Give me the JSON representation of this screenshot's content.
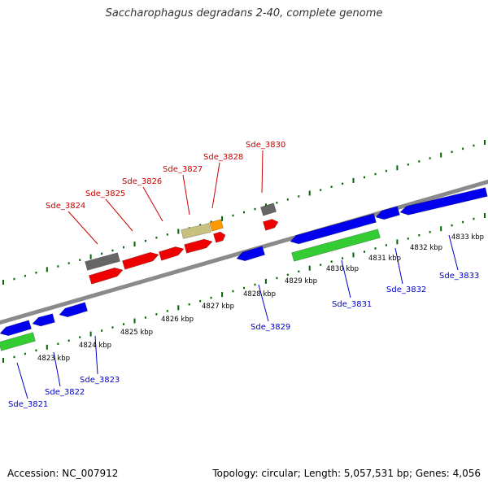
{
  "title": "Saccharophagus degradans 2-40, complete genome",
  "footer": {
    "accession": "Accession: NC_007912",
    "summary": "Topology: circular; Length: 5,057,531 bp; Genes: 4,056"
  },
  "colors": {
    "forward_label": "#cc0000",
    "reverse_label": "#0000cc",
    "tick": "#006600",
    "backbone": "#8a8a8a",
    "red": "#ee0000",
    "blue": "#0000ee",
    "green": "#33cc33",
    "gray": "#666666",
    "khaki": "#c8c080",
    "orange": "#ff9900"
  },
  "ruler": {
    "unit": "kbp",
    "labels": [
      "4823 kbp",
      "4824 kbp",
      "4825 kbp",
      "4826 kbp",
      "4827 kbp",
      "4828 kbp",
      "4829 kbp",
      "4830 kbp",
      "4831 kbp",
      "4832 kbp",
      "4833 kbp"
    ]
  },
  "genes": {
    "forward_labels": [
      "Sde_3824",
      "Sde_3825",
      "Sde_3826",
      "Sde_3827",
      "Sde_3828",
      "Sde_3830"
    ],
    "reverse_labels": [
      "Sde_3821",
      "Sde_3822",
      "Sde_3823",
      "Sde_3829",
      "Sde_3831",
      "Sde_3832",
      "Sde_3833"
    ]
  }
}
